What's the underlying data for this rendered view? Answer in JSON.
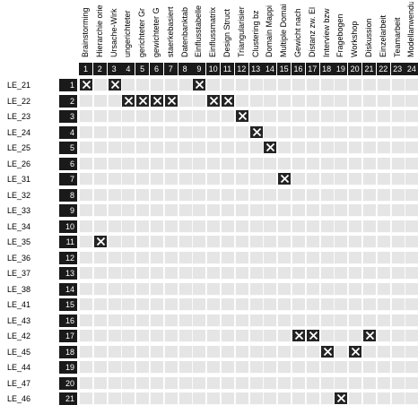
{
  "columns": [
    {
      "num": "1",
      "label": "Brainstorming"
    },
    {
      "num": "2",
      "label": "Hierarchie orie"
    },
    {
      "num": "3",
      "label": "Ursache-Wirk"
    },
    {
      "num": "4",
      "label": "ungerichteter"
    },
    {
      "num": "5",
      "label": "gerichteter Gr"
    },
    {
      "num": "6",
      "label": "gewichteter G"
    },
    {
      "num": "7",
      "label": "staerkebasiert"
    },
    {
      "num": "8",
      "label": "Datenbanktab"
    },
    {
      "num": "9",
      "label": "Einflusstabelle"
    },
    {
      "num": "10",
      "label": "Einflussmatrix"
    },
    {
      "num": "11",
      "label": "Design Struct"
    },
    {
      "num": "12",
      "label": "Triangularisier"
    },
    {
      "num": "13",
      "label": "Clustering bz"
    },
    {
      "num": "14",
      "label": "Domain Mappi"
    },
    {
      "num": "15",
      "label": "Multiple Domai"
    },
    {
      "num": "16",
      "label": "Gewicht nach"
    },
    {
      "num": "17",
      "label": "Distanz zw. El"
    },
    {
      "num": "18",
      "label": "Interview bzw"
    },
    {
      "num": "19",
      "label": "Fragebogen"
    },
    {
      "num": "20",
      "label": "Workshop"
    },
    {
      "num": "21",
      "label": "Diskussion"
    },
    {
      "num": "22",
      "label": "Einzelarbeit"
    },
    {
      "num": "23",
      "label": "Teamarbeit"
    },
    {
      "num": "24",
      "label": "Modellanwendur"
    }
  ],
  "rows": [
    {
      "num": "1",
      "label": "LE_21",
      "marks": [
        1,
        3,
        9
      ]
    },
    {
      "num": "2",
      "label": "LE_22",
      "marks": [
        4,
        5,
        6,
        7,
        10,
        11
      ]
    },
    {
      "num": "3",
      "label": "LE_23",
      "marks": [
        12
      ]
    },
    {
      "num": "4",
      "label": "LE_24",
      "marks": [
        13
      ]
    },
    {
      "num": "5",
      "label": "LE_25",
      "marks": [
        14
      ]
    },
    {
      "num": "6",
      "label": "LE_26",
      "marks": []
    },
    {
      "num": "7",
      "label": "LE_31",
      "marks": [
        15
      ]
    },
    {
      "num": "8",
      "label": "LE_32",
      "marks": []
    },
    {
      "num": "9",
      "label": "LE_33",
      "marks": []
    },
    {
      "num": "10",
      "label": "LE_34",
      "marks": []
    },
    {
      "num": "11",
      "label": "LE_35",
      "marks": [
        2
      ]
    },
    {
      "num": "12",
      "label": "LE_36",
      "marks": []
    },
    {
      "num": "13",
      "label": "LE_37",
      "marks": []
    },
    {
      "num": "14",
      "label": "LE_38",
      "marks": []
    },
    {
      "num": "15",
      "label": "LE_41",
      "marks": []
    },
    {
      "num": "16",
      "label": "LE_43",
      "marks": []
    },
    {
      "num": "17",
      "label": "LE_42",
      "marks": [
        16,
        17,
        21
      ]
    },
    {
      "num": "18",
      "label": "LE_45",
      "marks": [
        18,
        20
      ]
    },
    {
      "num": "19",
      "label": "LE_44",
      "marks": []
    },
    {
      "num": "20",
      "label": "LE_47",
      "marks": []
    },
    {
      "num": "21",
      "label": "LE_46",
      "marks": [
        19
      ]
    }
  ],
  "colors": {
    "cell": "#e5e5e5",
    "marked": "#242424",
    "header": "#1a1a1a"
  },
  "mark_icon": "x-mark-icon"
}
